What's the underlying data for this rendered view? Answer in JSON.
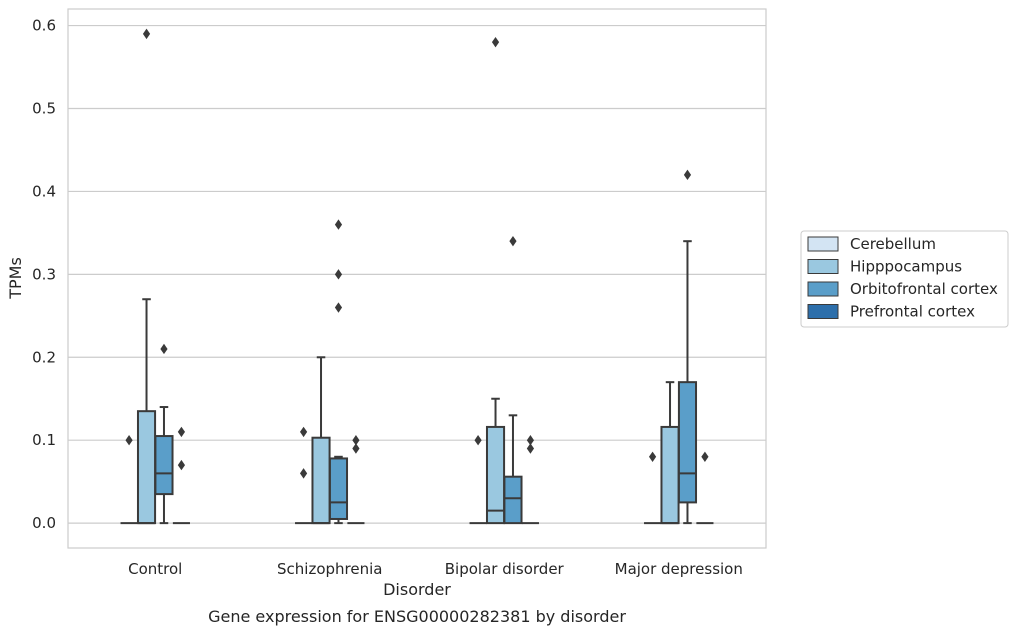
{
  "caption": "Gene expression for ENSG00000282381 by disorder",
  "chart_data": {
    "type": "box",
    "xlabel": "Disorder",
    "ylabel": "TPMs",
    "ylim": [
      -0.03,
      0.62
    ],
    "yticks": [
      "0.0",
      "0.1",
      "0.2",
      "0.3",
      "0.4",
      "0.5",
      "0.6"
    ],
    "grid": true,
    "legend_position": "right",
    "categories": [
      "Control",
      "Schizophrenia",
      "Bipolar disorder",
      "Major depression"
    ],
    "series": [
      {
        "name": "Cerebellum",
        "color": "#d3e4f3",
        "boxes": [
          {
            "q1": 0,
            "median": 0,
            "q3": 0,
            "whisker_low": 0,
            "whisker_high": 0,
            "outliers": [
              0.1
            ]
          },
          {
            "q1": 0,
            "median": 0,
            "q3": 0,
            "whisker_low": 0,
            "whisker_high": 0,
            "outliers": [
              0.06,
              0.11
            ]
          },
          {
            "q1": 0,
            "median": 0,
            "q3": 0,
            "whisker_low": 0,
            "whisker_high": 0,
            "outliers": [
              0.1
            ]
          },
          {
            "q1": 0,
            "median": 0,
            "q3": 0,
            "whisker_low": 0,
            "whisker_high": 0,
            "outliers": [
              0.08
            ]
          }
        ]
      },
      {
        "name": "Hipppocampus",
        "color": "#9ac8e0",
        "boxes": [
          {
            "q1": 0,
            "median": 0,
            "q3": 0.135,
            "whisker_low": 0,
            "whisker_high": 0.27,
            "outliers": [
              0.59
            ]
          },
          {
            "q1": 0,
            "median": 0,
            "q3": 0.103,
            "whisker_low": 0,
            "whisker_high": 0.2,
            "outliers": []
          },
          {
            "q1": 0,
            "median": 0.015,
            "q3": 0.116,
            "whisker_low": 0,
            "whisker_high": 0.15,
            "outliers": [
              0.58
            ]
          },
          {
            "q1": 0,
            "median": 0,
            "q3": 0.116,
            "whisker_low": 0,
            "whisker_high": 0.17,
            "outliers": []
          }
        ]
      },
      {
        "name": "Orbitofrontal cortex",
        "color": "#5a9ec9",
        "boxes": [
          {
            "q1": 0.035,
            "median": 0.06,
            "q3": 0.105,
            "whisker_low": 0,
            "whisker_high": 0.14,
            "outliers": [
              0.21
            ]
          },
          {
            "q1": 0.005,
            "median": 0.025,
            "q3": 0.078,
            "whisker_low": 0,
            "whisker_high": 0.08,
            "outliers": [
              0.26,
              0.3,
              0.36
            ]
          },
          {
            "q1": 0,
            "median": 0.03,
            "q3": 0.056,
            "whisker_low": 0,
            "whisker_high": 0.13,
            "outliers": [
              0.34
            ]
          },
          {
            "q1": 0.025,
            "median": 0.06,
            "q3": 0.17,
            "whisker_low": 0,
            "whisker_high": 0.34,
            "outliers": [
              0.42
            ]
          }
        ]
      },
      {
        "name": "Prefrontal cortex",
        "color": "#2d6fab",
        "boxes": [
          {
            "q1": 0,
            "median": 0,
            "q3": 0,
            "whisker_low": 0,
            "whisker_high": 0,
            "outliers": [
              0.07,
              0.11
            ]
          },
          {
            "q1": 0,
            "median": 0,
            "q3": 0,
            "whisker_low": 0,
            "whisker_high": 0,
            "outliers": [
              0.09,
              0.1
            ]
          },
          {
            "q1": 0,
            "median": 0,
            "q3": 0,
            "whisker_low": 0,
            "whisker_high": 0,
            "outliers": [
              0.09,
              0.1
            ]
          },
          {
            "q1": 0,
            "median": 0,
            "q3": 0,
            "whisker_low": 0,
            "whisker_high": 0,
            "outliers": [
              0.08
            ]
          }
        ]
      }
    ]
  }
}
